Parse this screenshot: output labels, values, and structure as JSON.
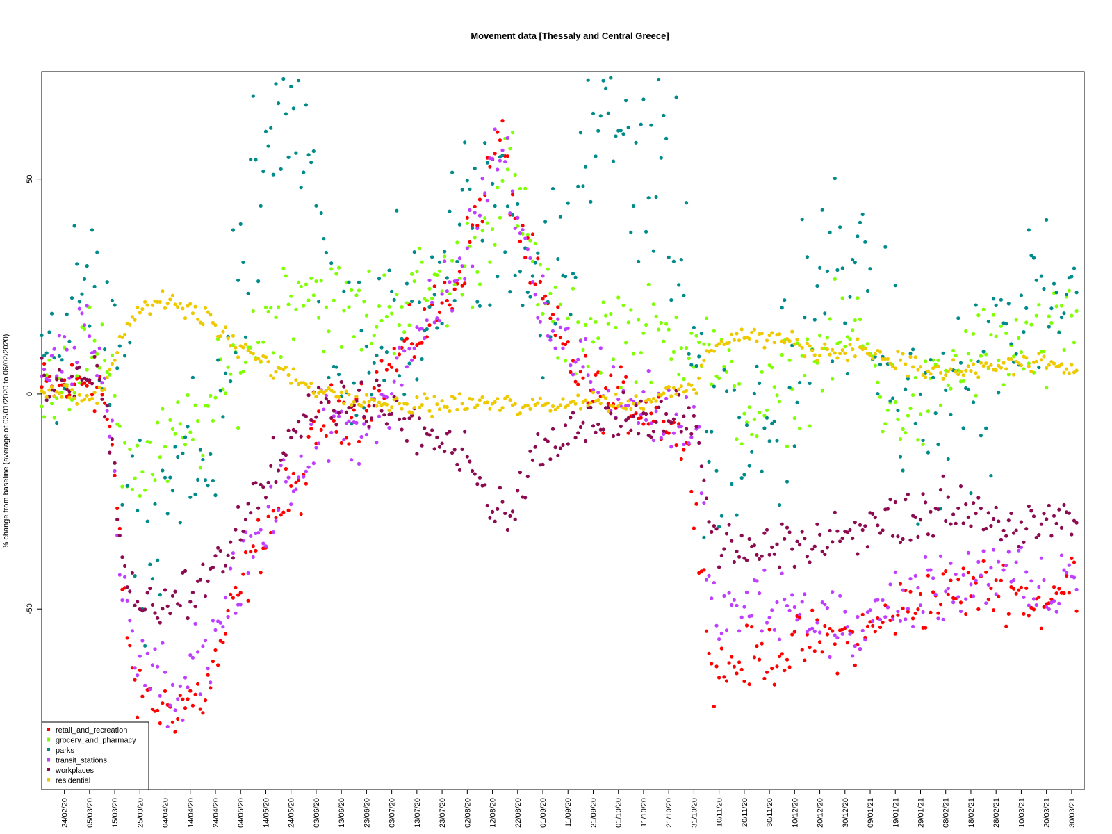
{
  "chart_data": {
    "type": "scatter",
    "title": "Movement data [Thessaly and Central Greece]",
    "ylabel": "% change from baseline (average of 03/01/2020 to 06/02/2020)",
    "xlabel": "",
    "x_start": "2020-02-15",
    "x_end": "2021-04-04",
    "ylim": [
      -92,
      75
    ],
    "y_ticks": [
      50,
      0,
      -50
    ],
    "x_ticks": [
      "24/02/20",
      "05/03/20",
      "15/03/20",
      "25/03/20",
      "04/04/20",
      "14/04/20",
      "24/04/20",
      "04/05/20",
      "14/05/20",
      "24/05/20",
      "03/06/20",
      "13/06/20",
      "23/06/20",
      "03/07/20",
      "13/07/20",
      "23/07/20",
      "02/08/20",
      "12/08/20",
      "22/08/20",
      "01/09/20",
      "11/09/20",
      "21/09/20",
      "01/10/20",
      "11/10/20",
      "21/10/20",
      "31/10/20",
      "10/11/20",
      "20/11/20",
      "30/11/20",
      "10/12/20",
      "20/12/20",
      "30/12/20",
      "09/01/21",
      "19/01/21",
      "29/01/21",
      "08/02/21",
      "18/02/21",
      "28/02/21",
      "10/03/21",
      "20/03/21",
      "30/03/21"
    ],
    "legend_position": "bottom-left",
    "grid": false,
    "series": [
      {
        "name": "retail_and_recreation",
        "color": "#ff0000",
        "anchors": [
          [
            "2020-02-15",
            1
          ],
          [
            "2020-02-28",
            2
          ],
          [
            "2020-03-04",
            4
          ],
          [
            "2020-03-10",
            1
          ],
          [
            "2020-03-14",
            -12
          ],
          [
            "2020-03-18",
            -45
          ],
          [
            "2020-03-24",
            -72
          ],
          [
            "2020-04-05",
            -73
          ],
          [
            "2020-04-20",
            -70
          ],
          [
            "2020-05-01",
            -50
          ],
          [
            "2020-05-15",
            -30
          ],
          [
            "2020-05-29",
            -20
          ],
          [
            "2020-06-05",
            -6
          ],
          [
            "2020-06-20",
            -3
          ],
          [
            "2020-07-01",
            5
          ],
          [
            "2020-07-15",
            15
          ],
          [
            "2020-07-28",
            25
          ],
          [
            "2020-08-05",
            40
          ],
          [
            "2020-08-15",
            60
          ],
          [
            "2020-08-22",
            40
          ],
          [
            "2020-08-30",
            25
          ],
          [
            "2020-09-05",
            15
          ],
          [
            "2020-09-20",
            0
          ],
          [
            "2020-10-05",
            -2
          ],
          [
            "2020-10-20",
            -5
          ],
          [
            "2020-10-27",
            -12
          ],
          [
            "2020-11-01",
            -25
          ],
          [
            "2020-11-07",
            -65
          ],
          [
            "2020-11-20",
            -62
          ],
          [
            "2020-12-05",
            -60
          ],
          [
            "2020-12-20",
            -57
          ],
          [
            "2021-01-05",
            -57
          ],
          [
            "2021-01-20",
            -50
          ],
          [
            "2021-02-05",
            -47
          ],
          [
            "2021-02-20",
            -45
          ],
          [
            "2021-03-05",
            -45
          ],
          [
            "2021-03-20",
            -50
          ],
          [
            "2021-04-01",
            -42
          ]
        ],
        "noise": 5
      },
      {
        "name": "grocery_and_pharmacy",
        "color": "#7fff00",
        "anchors": [
          [
            "2020-02-15",
            3
          ],
          [
            "2020-02-28",
            5
          ],
          [
            "2020-03-04",
            12
          ],
          [
            "2020-03-10",
            3
          ],
          [
            "2020-03-14",
            10
          ],
          [
            "2020-03-18",
            -15
          ],
          [
            "2020-03-24",
            -18
          ],
          [
            "2020-04-05",
            -13
          ],
          [
            "2020-04-20",
            -6
          ],
          [
            "2020-05-01",
            5
          ],
          [
            "2020-05-15",
            17
          ],
          [
            "2020-05-29",
            27
          ],
          [
            "2020-06-05",
            22
          ],
          [
            "2020-06-20",
            18
          ],
          [
            "2020-07-01",
            20
          ],
          [
            "2020-07-15",
            24
          ],
          [
            "2020-07-28",
            27
          ],
          [
            "2020-08-08",
            35
          ],
          [
            "2020-08-18",
            55
          ],
          [
            "2020-08-28",
            30
          ],
          [
            "2020-09-08",
            15
          ],
          [
            "2020-09-22",
            15
          ],
          [
            "2020-10-05",
            15
          ],
          [
            "2020-10-20",
            12
          ],
          [
            "2020-11-01",
            15
          ],
          [
            "2020-11-15",
            0
          ],
          [
            "2020-11-25",
            -5
          ],
          [
            "2020-12-10",
            3
          ],
          [
            "2020-12-25",
            12
          ],
          [
            "2021-01-05",
            15
          ],
          [
            "2021-01-15",
            -2
          ],
          [
            "2021-01-28",
            -5
          ],
          [
            "2021-02-10",
            5
          ],
          [
            "2021-02-20",
            10
          ],
          [
            "2021-03-05",
            10
          ],
          [
            "2021-03-20",
            10
          ],
          [
            "2021-04-01",
            18
          ]
        ],
        "noise": 8
      },
      {
        "name": "parks",
        "color": "#008b8b",
        "anchors": [
          [
            "2020-02-15",
            5
          ],
          [
            "2020-02-28",
            15
          ],
          [
            "2020-03-04",
            25
          ],
          [
            "2020-03-10",
            10
          ],
          [
            "2020-03-15",
            5
          ],
          [
            "2020-03-20",
            -20
          ],
          [
            "2020-03-28",
            -45
          ],
          [
            "2020-04-08",
            -25
          ],
          [
            "2020-04-22",
            -15
          ],
          [
            "2020-05-01",
            10
          ],
          [
            "2020-05-15",
            55
          ],
          [
            "2020-05-29",
            55
          ],
          [
            "2020-06-10",
            12
          ],
          [
            "2020-06-25",
            10
          ],
          [
            "2020-07-10",
            10
          ],
          [
            "2020-07-25",
            30
          ],
          [
            "2020-08-10",
            40
          ],
          [
            "2020-08-25",
            30
          ],
          [
            "2020-09-10",
            25
          ],
          [
            "2020-09-25",
            65
          ],
          [
            "2020-10-10",
            55
          ],
          [
            "2020-10-25",
            35
          ],
          [
            "2020-11-05",
            -15
          ],
          [
            "2020-11-20",
            -15
          ],
          [
            "2020-12-05",
            -5
          ],
          [
            "2020-12-20",
            20
          ],
          [
            "2021-01-01",
            30
          ],
          [
            "2021-01-15",
            5
          ],
          [
            "2021-01-28",
            -10
          ],
          [
            "2021-02-10",
            -5
          ],
          [
            "2021-02-25",
            0
          ],
          [
            "2021-03-10",
            15
          ],
          [
            "2021-03-22",
            20
          ],
          [
            "2021-04-01",
            30
          ]
        ],
        "noise": 16
      },
      {
        "name": "transit_stations",
        "color": "#bf3eff",
        "anchors": [
          [
            "2020-02-15",
            5
          ],
          [
            "2020-02-28",
            10
          ],
          [
            "2020-03-04",
            20
          ],
          [
            "2020-03-10",
            2
          ],
          [
            "2020-03-14",
            -10
          ],
          [
            "2020-03-18",
            -45
          ],
          [
            "2020-03-24",
            -58
          ],
          [
            "2020-04-05",
            -68
          ],
          [
            "2020-04-20",
            -62
          ],
          [
            "2020-05-01",
            -45
          ],
          [
            "2020-05-15",
            -30
          ],
          [
            "2020-05-29",
            -15
          ],
          [
            "2020-06-05",
            -8
          ],
          [
            "2020-06-20",
            -8
          ],
          [
            "2020-07-01",
            0
          ],
          [
            "2020-07-15",
            15
          ],
          [
            "2020-07-28",
            25
          ],
          [
            "2020-08-08",
            45
          ],
          [
            "2020-08-15",
            60
          ],
          [
            "2020-08-25",
            35
          ],
          [
            "2020-09-05",
            15
          ],
          [
            "2020-09-20",
            5
          ],
          [
            "2020-10-05",
            -2
          ],
          [
            "2020-10-20",
            -5
          ],
          [
            "2020-11-01",
            -8
          ],
          [
            "2020-11-07",
            -52
          ],
          [
            "2020-11-20",
            -50
          ],
          [
            "2020-12-05",
            -50
          ],
          [
            "2020-12-20",
            -52
          ],
          [
            "2021-01-05",
            -55
          ],
          [
            "2021-01-20",
            -48
          ],
          [
            "2021-02-05",
            -45
          ],
          [
            "2021-02-20",
            -42
          ],
          [
            "2021-03-05",
            -42
          ],
          [
            "2021-03-20",
            -48
          ],
          [
            "2021-04-01",
            -40
          ]
        ],
        "noise": 6
      },
      {
        "name": "workplaces",
        "color": "#8b0a50",
        "anchors": [
          [
            "2020-02-15",
            1
          ],
          [
            "2020-02-28",
            2
          ],
          [
            "2020-03-04",
            3
          ],
          [
            "2020-03-10",
            2
          ],
          [
            "2020-03-14",
            -15
          ],
          [
            "2020-03-18",
            -40
          ],
          [
            "2020-03-24",
            -50
          ],
          [
            "2020-04-05",
            -50
          ],
          [
            "2020-04-20",
            -45
          ],
          [
            "2020-05-01",
            -35
          ],
          [
            "2020-05-15",
            -20
          ],
          [
            "2020-05-29",
            -8
          ],
          [
            "2020-06-05",
            -2
          ],
          [
            "2020-06-20",
            -3
          ],
          [
            "2020-07-01",
            -5
          ],
          [
            "2020-07-15",
            -10
          ],
          [
            "2020-07-28",
            -14
          ],
          [
            "2020-08-05",
            -18
          ],
          [
            "2020-08-12",
            -28
          ],
          [
            "2020-08-20",
            -28
          ],
          [
            "2020-08-28",
            -15
          ],
          [
            "2020-09-10",
            -10
          ],
          [
            "2020-09-25",
            -8
          ],
          [
            "2020-10-10",
            -6
          ],
          [
            "2020-10-25",
            -6
          ],
          [
            "2020-11-01",
            -10
          ],
          [
            "2020-11-07",
            -35
          ],
          [
            "2020-11-20",
            -38
          ],
          [
            "2020-12-05",
            -37
          ],
          [
            "2020-12-20",
            -36
          ],
          [
            "2021-01-05",
            -32
          ],
          [
            "2021-01-20",
            -30
          ],
          [
            "2021-02-05",
            -28
          ],
          [
            "2021-02-20",
            -28
          ],
          [
            "2021-03-05",
            -32
          ],
          [
            "2021-03-20",
            -32
          ],
          [
            "2021-04-01",
            -30
          ]
        ],
        "noise": 3
      },
      {
        "name": "residential",
        "color": "#eec900",
        "anchors": [
          [
            "2020-02-15",
            1
          ],
          [
            "2020-02-28",
            0
          ],
          [
            "2020-03-04",
            -1
          ],
          [
            "2020-03-10",
            1
          ],
          [
            "2020-03-14",
            7
          ],
          [
            "2020-03-18",
            15
          ],
          [
            "2020-03-24",
            20
          ],
          [
            "2020-04-05",
            22
          ],
          [
            "2020-04-20",
            18
          ],
          [
            "2020-05-01",
            12
          ],
          [
            "2020-05-15",
            7
          ],
          [
            "2020-05-29",
            3
          ],
          [
            "2020-06-05",
            1
          ],
          [
            "2020-06-20",
            0
          ],
          [
            "2020-07-01",
            -2
          ],
          [
            "2020-07-15",
            -2
          ],
          [
            "2020-08-01",
            -2
          ],
          [
            "2020-08-15",
            -2
          ],
          [
            "2020-09-01",
            -2
          ],
          [
            "2020-09-20",
            -1
          ],
          [
            "2020-10-05",
            -2
          ],
          [
            "2020-10-20",
            0
          ],
          [
            "2020-11-01",
            2
          ],
          [
            "2020-11-07",
            12
          ],
          [
            "2020-11-20",
            14
          ],
          [
            "2020-12-05",
            13
          ],
          [
            "2020-12-20",
            10
          ],
          [
            "2021-01-05",
            11
          ],
          [
            "2021-01-20",
            8
          ],
          [
            "2021-02-05",
            5
          ],
          [
            "2021-02-20",
            6
          ],
          [
            "2021-03-05",
            7
          ],
          [
            "2021-03-20",
            8
          ],
          [
            "2021-04-01",
            5
          ]
        ],
        "noise": 1.5
      }
    ]
  }
}
